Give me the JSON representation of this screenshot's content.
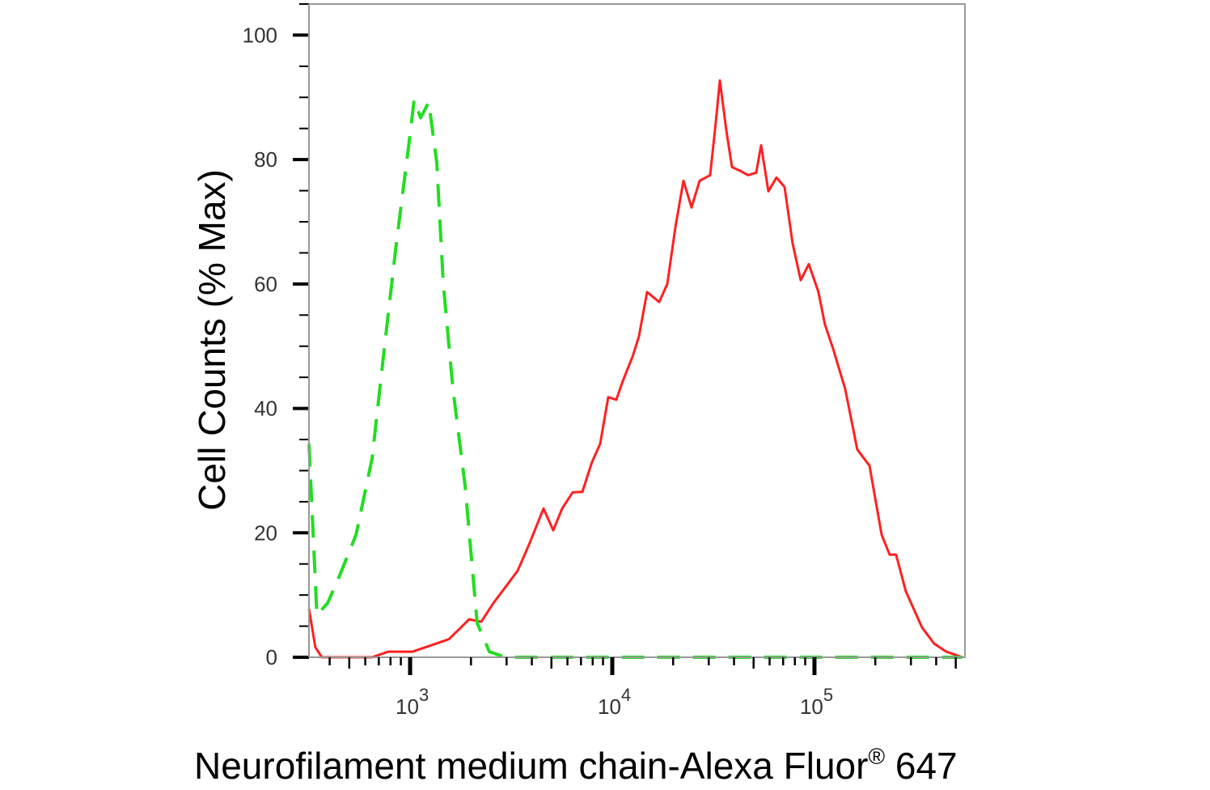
{
  "chart_data": {
    "type": "line",
    "title": "",
    "xlabel": "Neurofilament medium chain-Alexa Fluor",
    "xlabel_superscript": "®",
    "xlabel_suffix": " 647",
    "ylabel": "Cell Counts (% Max)",
    "x_scale": "log",
    "xlim": [
      316,
      555000
    ],
    "ylim": [
      0,
      105
    ],
    "grid": false,
    "x_ticks": [
      {
        "base": "10",
        "exp": "3",
        "value": 1000
      },
      {
        "base": "10",
        "exp": "4",
        "value": 10000
      },
      {
        "base": "10",
        "exp": "5",
        "value": 100000
      }
    ],
    "y_ticks": [
      {
        "label": "0",
        "value": 0
      },
      {
        "label": "20",
        "value": 20
      },
      {
        "label": "40",
        "value": 40
      },
      {
        "label": "60",
        "value": 60
      },
      {
        "label": "80",
        "value": 80
      },
      {
        "label": "100",
        "value": 100
      }
    ],
    "series": [
      {
        "color": "#ff2020",
        "style": "solid",
        "points": [
          [
            316,
            7.8
          ],
          [
            340,
            1.6
          ],
          [
            366,
            0
          ],
          [
            649,
            0
          ],
          [
            780,
            0.9
          ],
          [
            1028,
            0.9
          ],
          [
            1294,
            2
          ],
          [
            1556,
            2.9
          ],
          [
            1786,
            4.8
          ],
          [
            1959,
            6.1
          ],
          [
            2249,
            5.7
          ],
          [
            2582,
            8.7
          ],
          [
            2965,
            11.3
          ],
          [
            3404,
            13.9
          ],
          [
            3908,
            18.4
          ],
          [
            4571,
            23.9
          ],
          [
            5105,
            20.4
          ],
          [
            5649,
            23.9
          ],
          [
            6368,
            26.5
          ],
          [
            7112,
            26.6
          ],
          [
            7943,
            31.4
          ],
          [
            8710,
            34.3
          ],
          [
            9550,
            41.8
          ],
          [
            10470,
            41.4
          ],
          [
            11270,
            44.4
          ],
          [
            12590,
            48.3
          ],
          [
            13550,
            51.6
          ],
          [
            14860,
            58.7
          ],
          [
            17060,
            57.1
          ],
          [
            18710,
            60
          ],
          [
            20510,
            69.1
          ],
          [
            22490,
            76.6
          ],
          [
            24660,
            72.3
          ],
          [
            27040,
            76.6
          ],
          [
            30480,
            77.5
          ],
          [
            32510,
            86
          ],
          [
            34040,
            92.7
          ],
          [
            36640,
            84.7
          ],
          [
            39080,
            78.8
          ],
          [
            42850,
            78.2
          ],
          [
            46990,
            77.5
          ],
          [
            51520,
            77.9
          ],
          [
            54450,
            82.3
          ],
          [
            59160,
            74.9
          ],
          [
            64860,
            77.1
          ],
          [
            71120,
            75.6
          ],
          [
            77980,
            66.5
          ],
          [
            85510,
            60.6
          ],
          [
            93760,
            63.2
          ],
          [
            104700,
            58.7
          ],
          [
            112700,
            53.5
          ],
          [
            123600,
            49.6
          ],
          [
            141900,
            43.1
          ],
          [
            162900,
            33.4
          ],
          [
            187100,
            30.8
          ],
          [
            214800,
            19.7
          ],
          [
            235500,
            16.5
          ],
          [
            253500,
            16.5
          ],
          [
            283100,
            10.6
          ],
          [
            340400,
            4.8
          ],
          [
            390800,
            2.2
          ],
          [
            448700,
            0.9
          ],
          [
            539500,
            0
          ]
        ]
      },
      {
        "color": "#22dd22",
        "style": "dashed",
        "points": [
          [
            316,
            34.3
          ],
          [
            346,
            6.8
          ],
          [
            391,
            8.7
          ],
          [
            449,
            13.2
          ],
          [
            540,
            19.7
          ],
          [
            649,
            32
          ],
          [
            745,
            49.6
          ],
          [
            855,
            66.5
          ],
          [
            982,
            82
          ],
          [
            1047,
            89.6
          ],
          [
            1127,
            86.7
          ],
          [
            1236,
            89.2
          ],
          [
            1355,
            79.5
          ],
          [
            1459,
            60
          ],
          [
            1629,
            43.1
          ],
          [
            1871,
            27.5
          ],
          [
            2146,
            5.5
          ],
          [
            2465,
            0.9
          ],
          [
            2965,
            0
          ],
          [
            539500,
            0
          ]
        ]
      }
    ]
  }
}
